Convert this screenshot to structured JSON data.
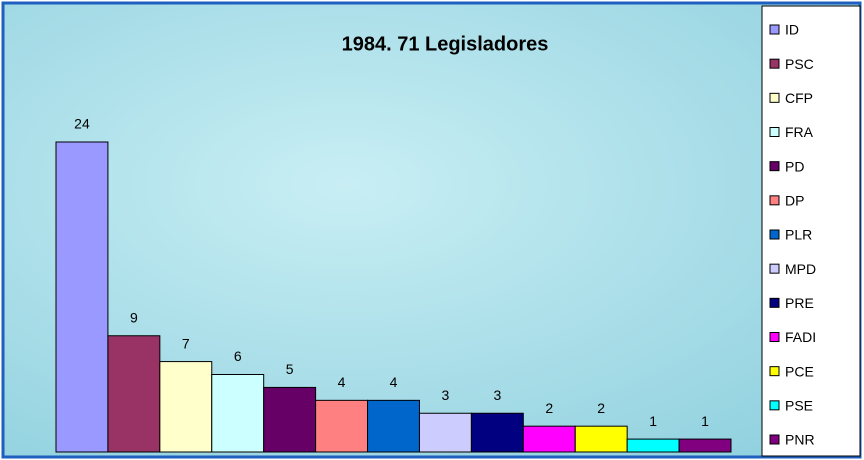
{
  "chart_data": {
    "type": "bar",
    "title": "1984.   71 Legisladores",
    "categories": [
      "ID",
      "PSC",
      "CFP",
      "FRA",
      "PD",
      "DP",
      "PLR",
      "MPD",
      "PRE",
      "FADI",
      "PCE",
      "PSE",
      "PNR"
    ],
    "values": [
      24,
      9,
      7,
      6,
      5,
      4,
      4,
      3,
      3,
      2,
      2,
      1,
      1
    ],
    "colors": [
      "#9999ff",
      "#993366",
      "#ffffcc",
      "#ccffff",
      "#660066",
      "#ff8080",
      "#0066cc",
      "#ccccff",
      "#000080",
      "#ff00ff",
      "#ffff00",
      "#00ffff",
      "#800080"
    ],
    "legend": "right"
  }
}
